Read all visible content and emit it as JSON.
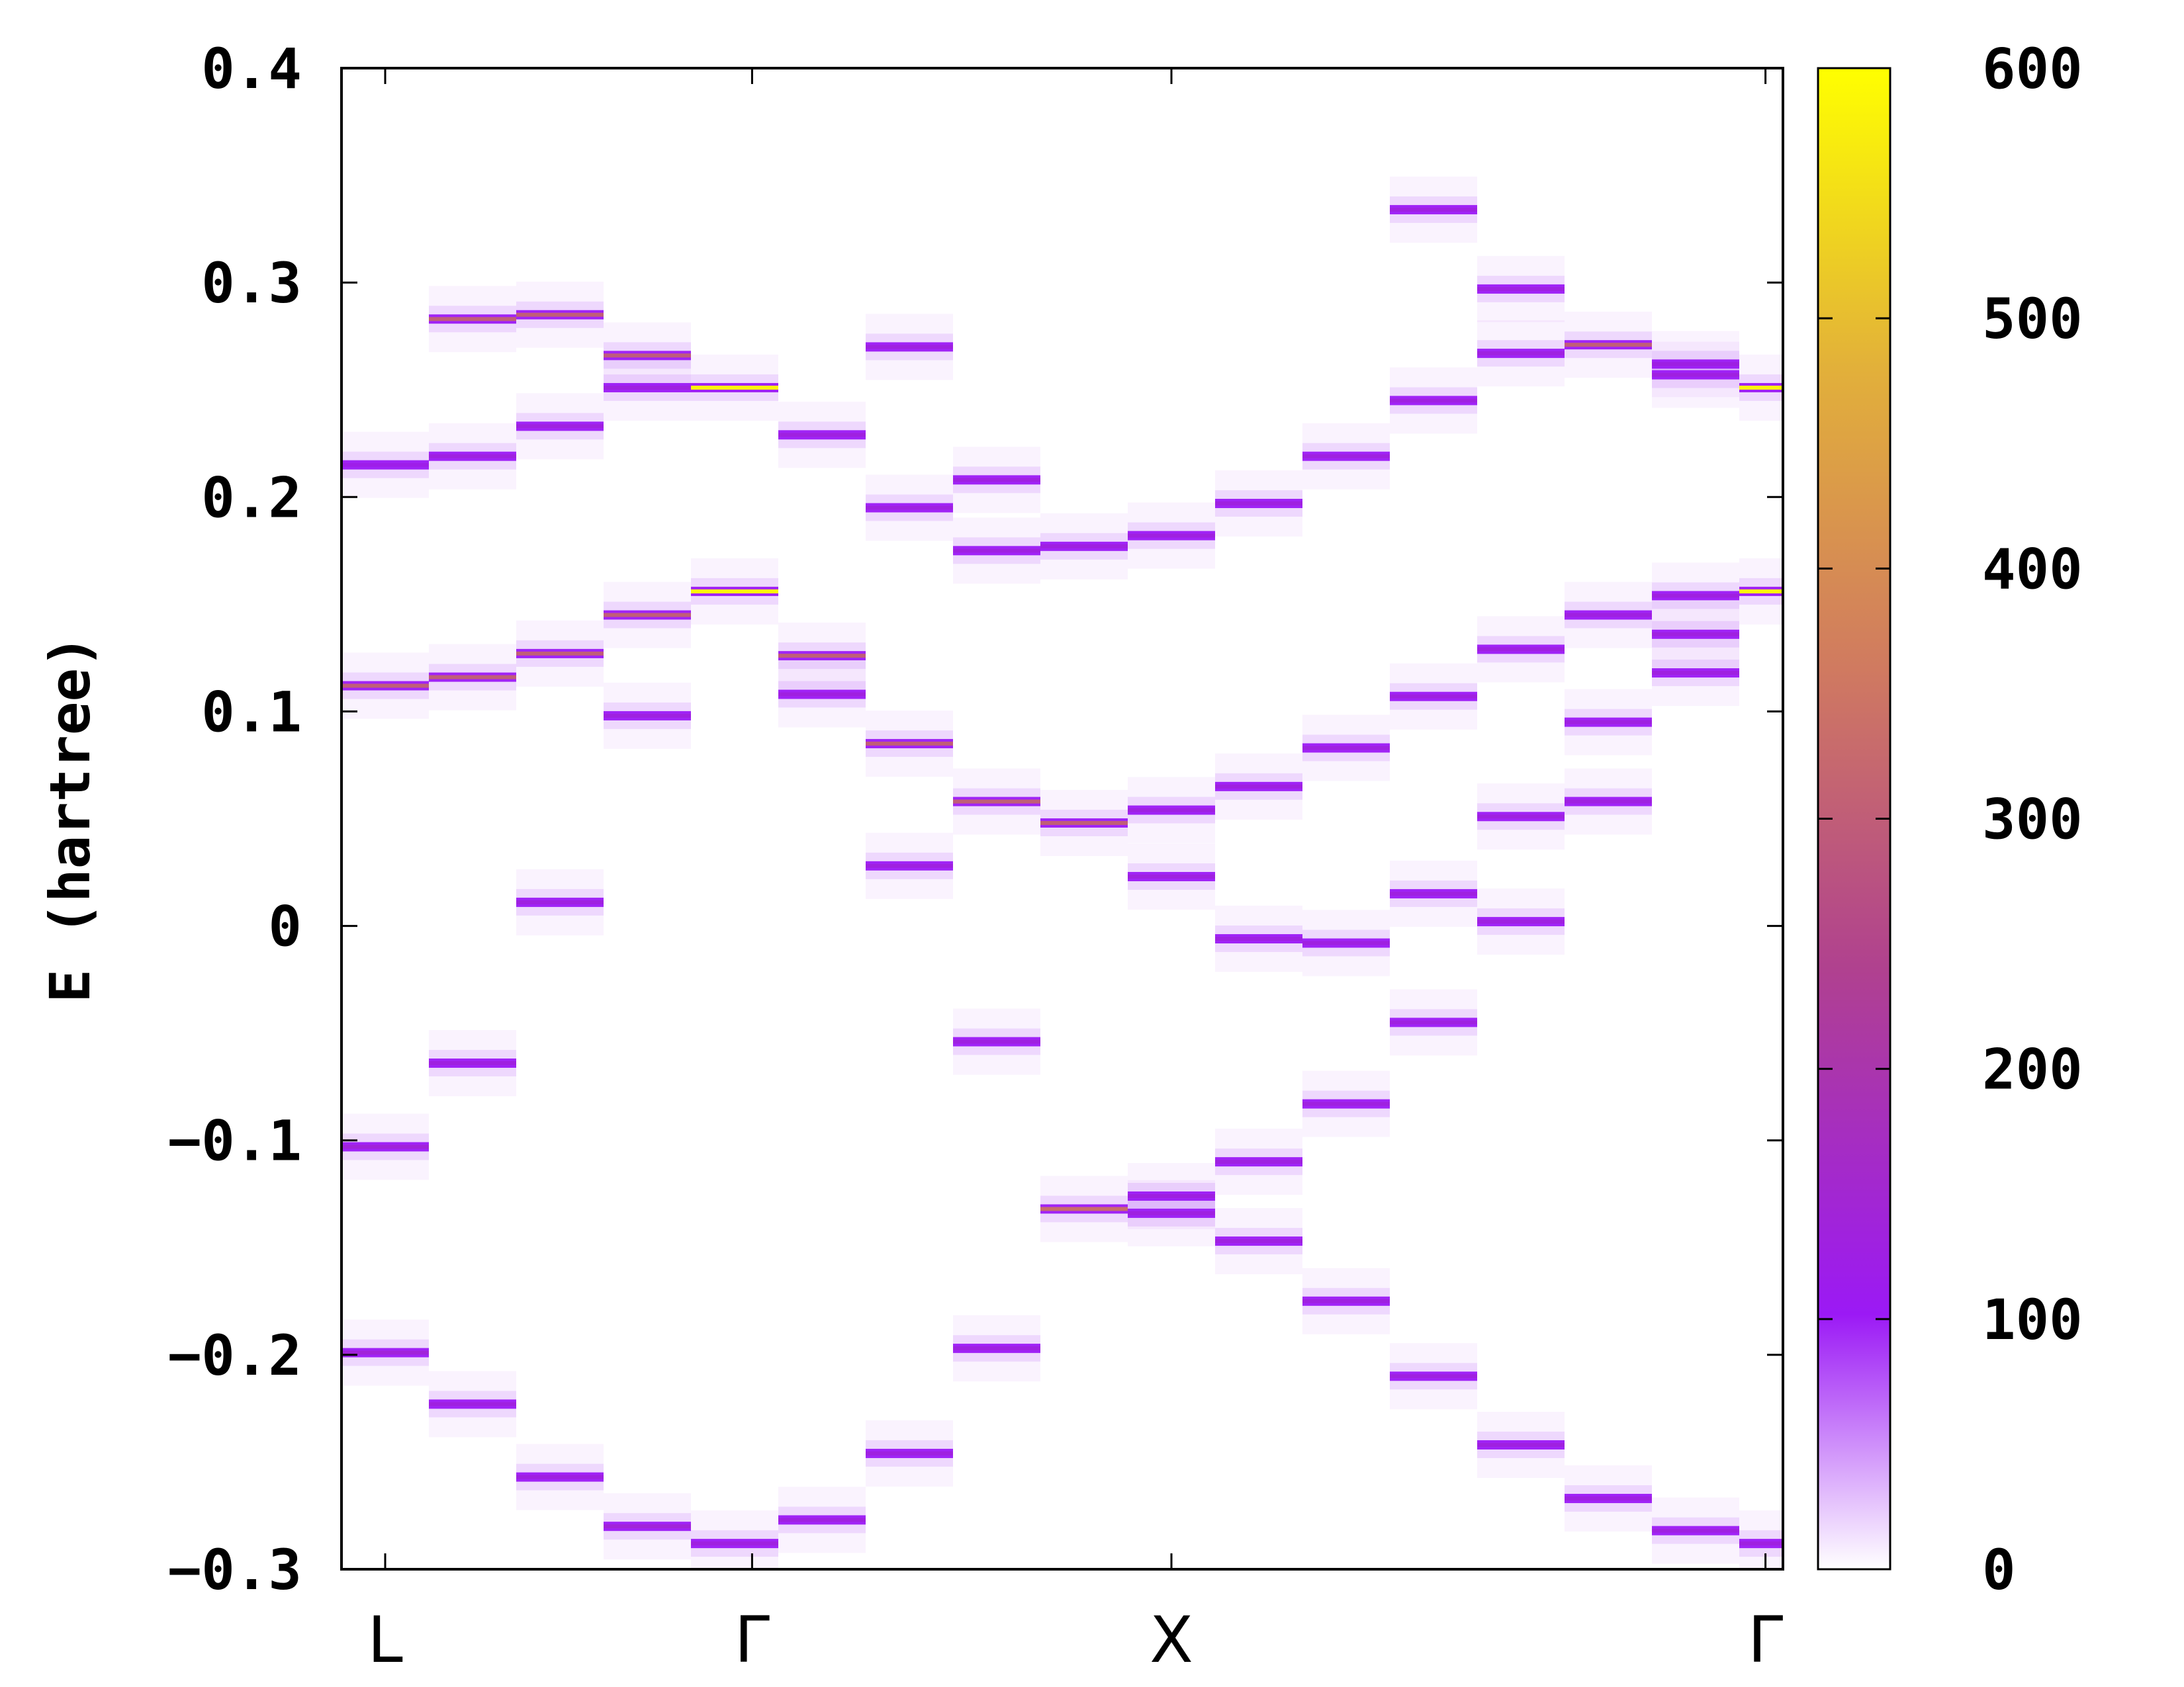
{
  "chart_data": {
    "type": "heatmap",
    "title": "",
    "xlabel": "",
    "ylabel": "E (hartree)",
    "ylim": [
      -0.3,
      0.4
    ],
    "yticks": [
      "0.4",
      "0.3",
      "0.2",
      "0.1",
      "0",
      "−0.1",
      "−0.2",
      "−0.3"
    ],
    "k_points": [
      {
        "label": "L",
        "pos": 0
      },
      {
        "label": "Γ",
        "pos": 4.2
      },
      {
        "label": "X",
        "pos": 9.0
      },
      {
        "label": "Γ",
        "pos": 15.8
      }
    ],
    "colorbar": {
      "range": [
        0,
        600
      ],
      "ticks": [
        "600",
        "500",
        "400",
        "300",
        "200",
        "100",
        "0"
      ],
      "colors": [
        "#ffffff",
        "#9b19f5",
        "#b0418f",
        "#d07a60",
        "#e2b03a",
        "#ffff00"
      ]
    },
    "columns": [
      {
        "k": 0,
        "bands": [
          [
            0.215,
            120
          ],
          [
            0.112,
            300
          ],
          [
            -0.103,
            140
          ],
          [
            -0.199,
            140
          ]
        ]
      },
      {
        "k": 1,
        "bands": [
          [
            0.283,
            300
          ],
          [
            0.219,
            130
          ],
          [
            0.116,
            300
          ],
          [
            -0.064,
            130
          ],
          [
            -0.223,
            130
          ]
        ]
      },
      {
        "k": 2,
        "bands": [
          [
            0.285,
            300
          ],
          [
            0.233,
            130
          ],
          [
            0.127,
            300
          ],
          [
            0.011,
            130
          ],
          [
            -0.257,
            130
          ]
        ]
      },
      {
        "k": 3,
        "bands": [
          [
            0.266,
            300
          ],
          [
            0.251,
            130
          ],
          [
            0.145,
            300
          ],
          [
            0.098,
            130
          ],
          [
            -0.28,
            140
          ]
        ]
      },
      {
        "k": 4,
        "bands": [
          [
            0.251,
            590
          ],
          [
            0.156,
            590
          ],
          [
            -0.288,
            130
          ]
        ]
      },
      {
        "k": 5,
        "bands": [
          [
            0.229,
            130
          ],
          [
            0.126,
            300
          ],
          [
            0.108,
            130
          ],
          [
            -0.277,
            130
          ]
        ]
      },
      {
        "k": 6,
        "bands": [
          [
            0.27,
            130
          ],
          [
            0.195,
            130
          ],
          [
            0.085,
            300
          ],
          [
            0.028,
            130
          ],
          [
            -0.246,
            130
          ]
        ]
      },
      {
        "k": 7,
        "bands": [
          [
            0.208,
            130
          ],
          [
            0.175,
            130
          ],
          [
            0.058,
            300
          ],
          [
            -0.054,
            130
          ],
          [
            -0.197,
            130
          ]
        ]
      },
      {
        "k": 8,
        "bands": [
          [
            0.177,
            130
          ],
          [
            0.048,
            300
          ],
          [
            -0.132,
            330
          ]
        ]
      },
      {
        "k": 9,
        "bands": [
          [
            0.182,
            130
          ],
          [
            0.054,
            130
          ],
          [
            0.023,
            130
          ],
          [
            -0.126,
            130
          ],
          [
            -0.134,
            130
          ]
        ]
      },
      {
        "k": 10,
        "bands": [
          [
            0.197,
            130
          ],
          [
            0.065,
            130
          ],
          [
            -0.006,
            130
          ],
          [
            -0.11,
            130
          ],
          [
            -0.147,
            130
          ]
        ]
      },
      {
        "k": 11,
        "bands": [
          [
            0.219,
            130
          ],
          [
            0.083,
            130
          ],
          [
            -0.008,
            130
          ],
          [
            -0.083,
            130
          ],
          [
            -0.175,
            130
          ]
        ]
      },
      {
        "k": 12,
        "bands": [
          [
            0.334,
            130
          ],
          [
            0.245,
            130
          ],
          [
            0.107,
            130
          ],
          [
            0.015,
            130
          ],
          [
            -0.045,
            130
          ],
          [
            -0.21,
            130
          ]
        ]
      },
      {
        "k": 13,
        "bands": [
          [
            0.297,
            130
          ],
          [
            0.267,
            130
          ],
          [
            0.129,
            130
          ],
          [
            0.051,
            130
          ],
          [
            0.002,
            130
          ],
          [
            -0.242,
            130
          ]
        ]
      },
      {
        "k": 14,
        "bands": [
          [
            0.271,
            300
          ],
          [
            0.145,
            130
          ],
          [
            0.095,
            130
          ],
          [
            0.058,
            130
          ],
          [
            -0.267,
            130
          ]
        ]
      },
      {
        "k": 15,
        "bands": [
          [
            0.262,
            130
          ],
          [
            0.257,
            130
          ],
          [
            0.154,
            130
          ],
          [
            0.136,
            130
          ],
          [
            0.118,
            130
          ],
          [
            -0.282,
            130
          ]
        ]
      },
      {
        "k": 16,
        "bands": [
          [
            0.251,
            590
          ],
          [
            0.156,
            590
          ],
          [
            -0.288,
            130
          ]
        ]
      }
    ]
  }
}
